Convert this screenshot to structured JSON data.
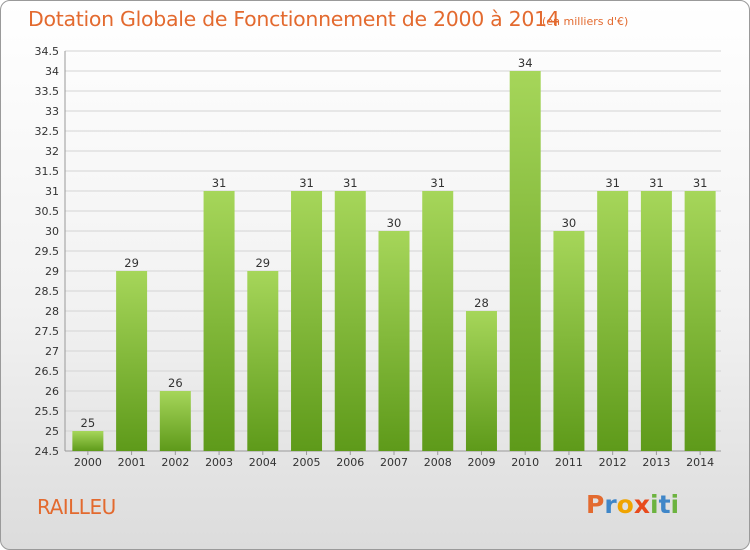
{
  "header": {
    "title": "Dotation Globale de Fonctionnement de 2000 à 2014",
    "unit": "(en milliers d'€)"
  },
  "footer": {
    "commune": "RAILLEU",
    "logo": {
      "letters": [
        "P",
        "r",
        "o",
        "x",
        "i",
        "t",
        "i"
      ],
      "colors": [
        "#e36a2f",
        "#3f86c8",
        "#f0a400",
        "#e84a1c",
        "#6cb33f",
        "#3f86c8",
        "#6cb33f"
      ]
    }
  },
  "chart_data": {
    "type": "bar",
    "categories": [
      "2000",
      "2001",
      "2002",
      "2003",
      "2004",
      "2005",
      "2006",
      "2007",
      "2008",
      "2009",
      "2010",
      "2011",
      "2012",
      "2013",
      "2014"
    ],
    "values": [
      25,
      29,
      26,
      31,
      29,
      31,
      31,
      30,
      31,
      28,
      34,
      30,
      31,
      31,
      31
    ],
    "title": "Dotation Globale de Fonctionnement de 2000 à 2014",
    "unit": "(en milliers d'€)",
    "ylim": [
      24.5,
      34.5
    ],
    "ytick_step": 0.5,
    "grid": true,
    "bar_color_top": "#a6d65a",
    "bar_color_bottom": "#5e9a1a",
    "legend": "none"
  }
}
